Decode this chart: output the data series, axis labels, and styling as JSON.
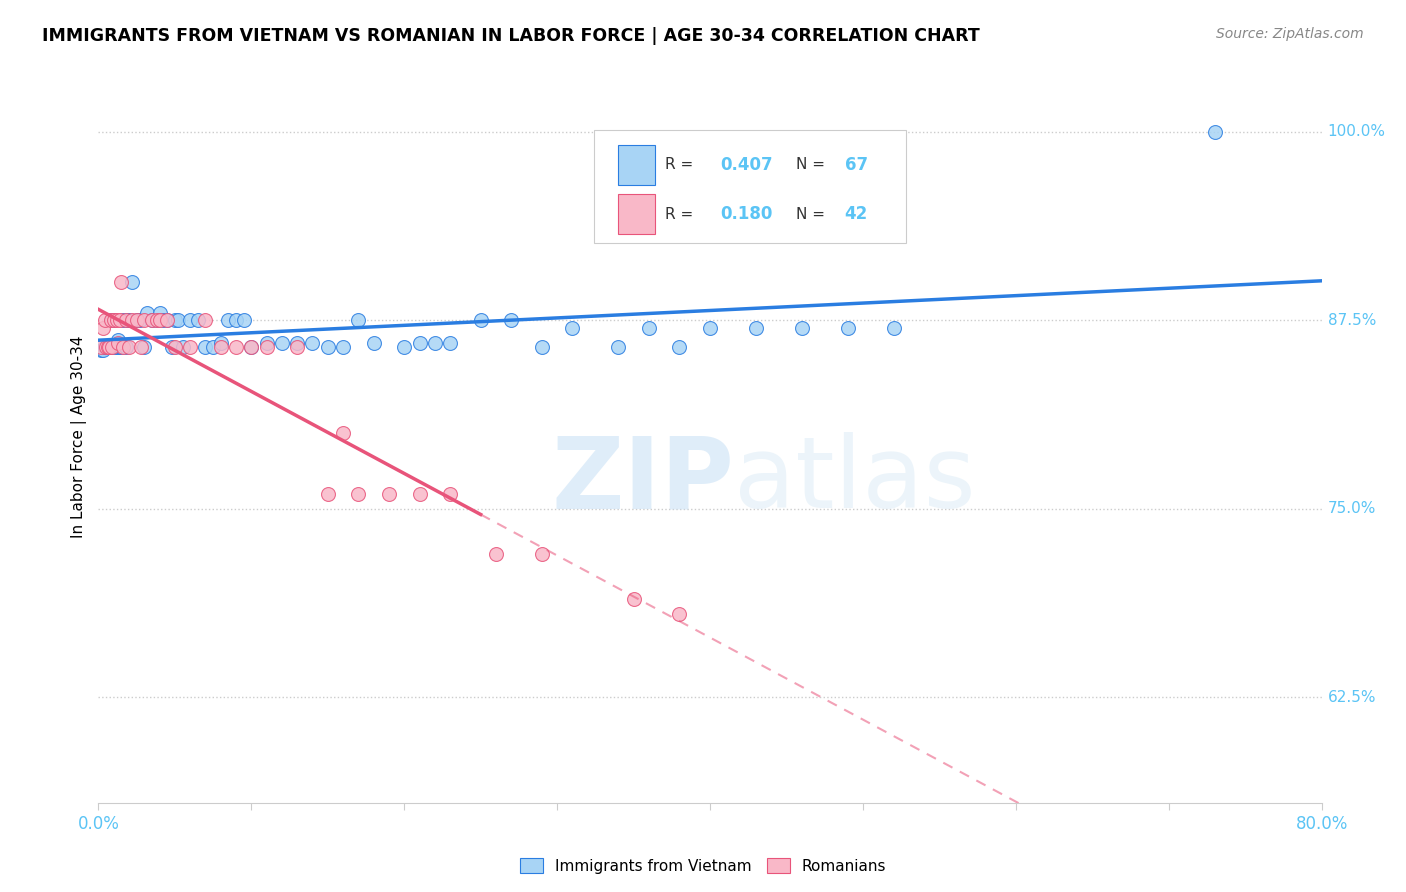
{
  "title": "IMMIGRANTS FROM VIETNAM VS ROMANIAN IN LABOR FORCE | AGE 30-34 CORRELATION CHART",
  "source": "Source: ZipAtlas.com",
  "ylabel": "In Labor Force | Age 30-34",
  "xlim": [
    0.0,
    0.8
  ],
  "ylim": [
    0.555,
    1.04
  ],
  "right_yticks": [
    0.625,
    0.75,
    0.875,
    1.0
  ],
  "right_yticklabels": [
    "62.5%",
    "75.0%",
    "87.5%",
    "100.0%"
  ],
  "xticks": [
    0.0,
    0.1,
    0.2,
    0.3,
    0.4,
    0.5,
    0.6,
    0.7,
    0.8
  ],
  "color_vietnam": "#a8d4f5",
  "color_romanian": "#f9b8c8",
  "color_vietnam_line": "#2a7de1",
  "color_romanian_line": "#e8547a",
  "color_axis_labels": "#5bc4f5",
  "watermark_zip": "ZIP",
  "watermark_atlas": "atlas",
  "vietnam_x": [
    0.002,
    0.003,
    0.004,
    0.005,
    0.006,
    0.007,
    0.008,
    0.008,
    0.009,
    0.01,
    0.011,
    0.012,
    0.013,
    0.014,
    0.015,
    0.016,
    0.018,
    0.019,
    0.02,
    0.022,
    0.025,
    0.027,
    0.03,
    0.032,
    0.035,
    0.038,
    0.04,
    0.042,
    0.045,
    0.048,
    0.05,
    0.052,
    0.055,
    0.06,
    0.065,
    0.07,
    0.075,
    0.08,
    0.085,
    0.09,
    0.095,
    0.1,
    0.11,
    0.12,
    0.13,
    0.14,
    0.15,
    0.16,
    0.17,
    0.18,
    0.2,
    0.21,
    0.22,
    0.23,
    0.25,
    0.27,
    0.29,
    0.31,
    0.34,
    0.36,
    0.38,
    0.4,
    0.43,
    0.46,
    0.49,
    0.52,
    0.73
  ],
  "vietnam_y": [
    0.855,
    0.855,
    0.857,
    0.857,
    0.857,
    0.857,
    0.857,
    0.875,
    0.875,
    0.875,
    0.857,
    0.857,
    0.862,
    0.857,
    0.857,
    0.875,
    0.857,
    0.875,
    0.875,
    0.9,
    0.875,
    0.875,
    0.857,
    0.88,
    0.875,
    0.875,
    0.88,
    0.875,
    0.875,
    0.857,
    0.875,
    0.875,
    0.857,
    0.875,
    0.875,
    0.857,
    0.857,
    0.86,
    0.875,
    0.875,
    0.875,
    0.857,
    0.86,
    0.86,
    0.86,
    0.86,
    0.857,
    0.857,
    0.875,
    0.86,
    0.857,
    0.86,
    0.86,
    0.86,
    0.875,
    0.875,
    0.857,
    0.87,
    0.857,
    0.87,
    0.857,
    0.87,
    0.87,
    0.87,
    0.87,
    0.87,
    1.0
  ],
  "romanian_x": [
    0.002,
    0.003,
    0.004,
    0.005,
    0.006,
    0.007,
    0.008,
    0.009,
    0.01,
    0.012,
    0.013,
    0.014,
    0.015,
    0.016,
    0.018,
    0.02,
    0.022,
    0.025,
    0.028,
    0.03,
    0.035,
    0.038,
    0.04,
    0.045,
    0.05,
    0.06,
    0.07,
    0.08,
    0.09,
    0.1,
    0.11,
    0.13,
    0.15,
    0.16,
    0.17,
    0.19,
    0.21,
    0.23,
    0.26,
    0.29,
    0.35,
    0.38
  ],
  "romanian_y": [
    0.857,
    0.87,
    0.875,
    0.857,
    0.857,
    0.857,
    0.875,
    0.857,
    0.875,
    0.875,
    0.86,
    0.875,
    0.9,
    0.857,
    0.875,
    0.857,
    0.875,
    0.875,
    0.857,
    0.875,
    0.875,
    0.875,
    0.875,
    0.875,
    0.857,
    0.857,
    0.875,
    0.857,
    0.857,
    0.857,
    0.857,
    0.857,
    0.76,
    0.8,
    0.76,
    0.76,
    0.76,
    0.76,
    0.72,
    0.72,
    0.69,
    0.68
  ]
}
